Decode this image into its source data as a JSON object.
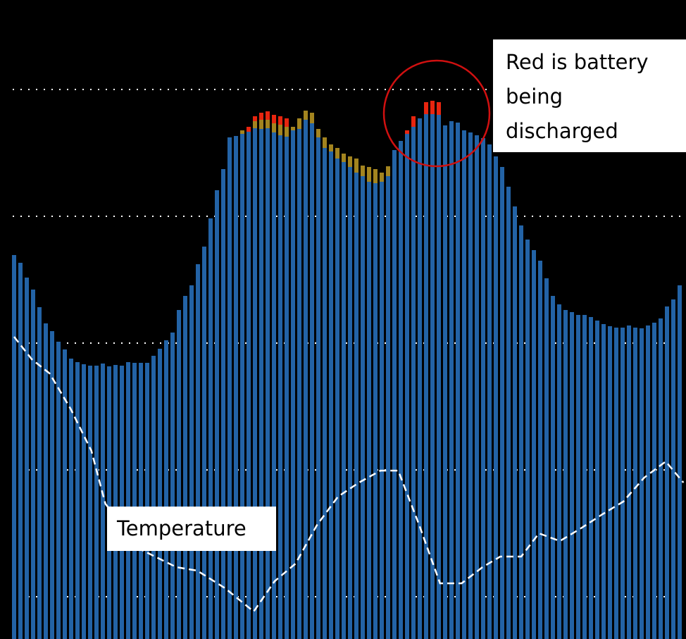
{
  "chart_data": {
    "type": "bar",
    "ylim": [
      0,
      90.7
    ],
    "yticks": [
      6,
      24,
      42,
      60,
      78
    ],
    "grid": true,
    "series": [
      {
        "color": "#2363a6",
        "values": [
          54.5,
          53.4,
          51.3,
          49.6,
          47.1,
          44.8,
          43.7,
          42.2,
          41.1,
          39.8,
          39.3,
          39.0,
          38.8,
          38.8,
          39.1,
          38.7,
          38.9,
          38.8,
          39.3,
          39.2,
          39.2,
          39.2,
          40.2,
          41.2,
          42.4,
          43.5,
          46.7,
          48.7,
          50.2,
          53.2,
          55.7,
          59.7,
          63.7,
          66.7,
          71.2,
          71.4,
          71.7,
          72.0,
          72.5,
          72.4,
          72.5,
          71.9,
          71.5,
          71.3,
          72.2,
          72.4,
          73.7,
          73.2,
          71.2,
          69.7,
          69.2,
          68.2,
          67.7,
          67.0,
          66.2,
          65.7,
          64.9,
          64.7,
          64.9,
          65.7,
          69.4,
          70.7,
          71.7,
          72.7,
          73.9,
          74.5,
          74.5,
          74.4,
          72.9,
          73.5,
          73.3,
          72.2,
          71.9,
          71.5,
          71.1,
          70.2,
          68.5,
          67.0,
          64.2,
          61.4,
          58.7,
          56.7,
          55.2,
          53.7,
          51.2,
          48.7,
          47.5,
          46.7,
          46.4,
          46.0,
          46.0,
          45.7,
          45.2,
          44.7,
          44.4,
          44.2,
          44.2,
          44.5,
          44.2,
          44.1,
          44.5,
          44.9,
          45.5,
          47.2,
          48.2,
          50.2
        ]
      },
      {
        "color": "#a3841f",
        "values": [
          0,
          0,
          0,
          0,
          0,
          0,
          0,
          0,
          0,
          0,
          0,
          0,
          0,
          0,
          0,
          0,
          0,
          0,
          0,
          0,
          0,
          0,
          0,
          0,
          0,
          0,
          0,
          0,
          0,
          0,
          0,
          0,
          0,
          0,
          0,
          0,
          0.5,
          0,
          1.0,
          1.3,
          1.2,
          1.3,
          1.5,
          1.4,
          0.5,
          1.5,
          1.3,
          1.5,
          1.2,
          1.5,
          1.0,
          1.5,
          1.2,
          1.5,
          2.0,
          1.5,
          2.1,
          2.0,
          1.3,
          1.4,
          0,
          0,
          0,
          0,
          0,
          0,
          0,
          0,
          0,
          0,
          0,
          0,
          0,
          0,
          0,
          0,
          0,
          0,
          0,
          0,
          0,
          0,
          0,
          0,
          0,
          0,
          0,
          0,
          0,
          0,
          0,
          0,
          0,
          0,
          0,
          0,
          0,
          0,
          0,
          0,
          0,
          0,
          0,
          0,
          0,
          0
        ]
      },
      {
        "color": "#e8250f",
        "values": [
          0,
          0,
          0,
          0,
          0,
          0,
          0,
          0,
          0,
          0,
          0,
          0,
          0,
          0,
          0,
          0,
          0,
          0,
          0,
          0,
          0,
          0,
          0,
          0,
          0,
          0,
          0,
          0,
          0,
          0,
          0,
          0,
          0,
          0,
          0,
          0,
          0,
          0.7,
          0.7,
          1.0,
          1.2,
          1.2,
          1.2,
          1.2,
          0,
          0,
          0,
          0,
          0,
          0,
          0,
          0,
          0,
          0,
          0,
          0,
          0,
          0,
          0,
          0,
          0,
          0,
          0.5,
          1.5,
          0,
          1.7,
          1.9,
          1.8,
          0,
          0,
          0,
          0,
          0,
          0,
          0,
          0,
          0,
          0,
          0,
          0,
          0,
          0,
          0,
          0,
          0,
          0,
          0,
          0,
          0,
          0,
          0,
          0,
          0,
          0,
          0,
          0,
          0,
          0,
          0,
          0,
          0,
          0,
          0,
          0,
          0,
          0
        ]
      }
    ],
    "line": {
      "name": "Temperature",
      "color": "#ffffff",
      "x": [
        0,
        2.8,
        5.6,
        8.9,
        12.2,
        14.4,
        20,
        25.6,
        28.9,
        33.3,
        37.8,
        41.1,
        44.4,
        47.8,
        51.1,
        54.4,
        57.8,
        60.6,
        63.9,
        67.2,
        70.6,
        73.9,
        76.7,
        80,
        82.8,
        86.1,
        89.4,
        92.8,
        96.1,
        99.4,
        102.8,
        105.6
      ],
      "values": [
        42.9,
        39.7,
        37.7,
        32.7,
        26.7,
        19.2,
        12.7,
        10.2,
        9.7,
        7.2,
        3.9,
        8.2,
        10.7,
        16.2,
        20.2,
        22.2,
        23.9,
        23.9,
        16.2,
        7.9,
        7.9,
        10.2,
        11.7,
        11.7,
        15.0,
        13.9,
        15.7,
        17.7,
        19.5,
        22.9,
        25.2,
        22.2
      ]
    },
    "annotations": [
      {
        "lines": [
          "Red is battery",
          "being",
          "discharged"
        ]
      }
    ]
  }
}
